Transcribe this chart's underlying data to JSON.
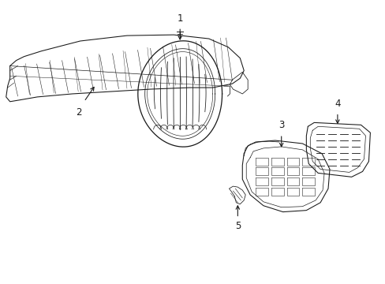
{
  "background_color": "#ffffff",
  "line_color": "#1a1a1a",
  "line_width": 0.7,
  "label_fontsize": 8.5,
  "figsize": [
    4.89,
    3.6
  ],
  "dpi": 100
}
